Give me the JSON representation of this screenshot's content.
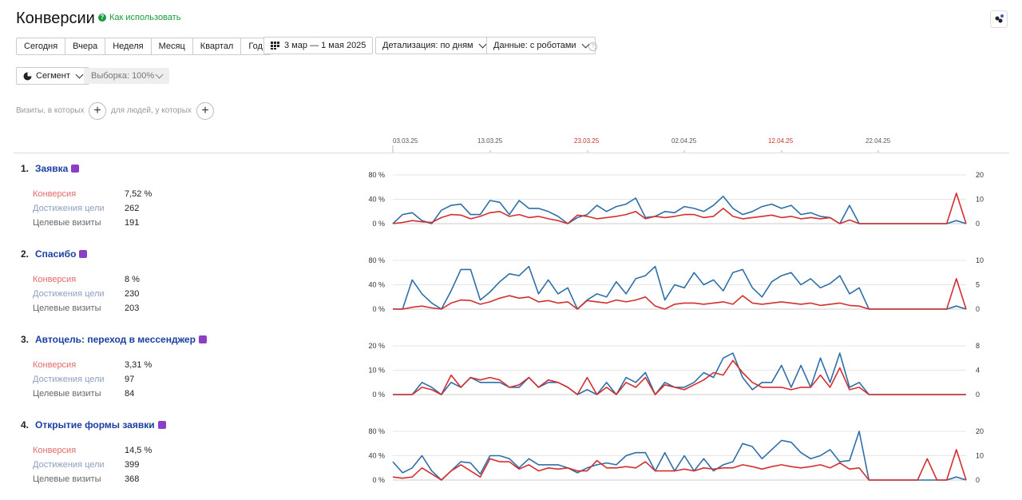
{
  "header": {
    "title": "Конверсии",
    "help_link": "Как использовать"
  },
  "toolbar": {
    "periods": [
      "Сегодня",
      "Вчера",
      "Неделя",
      "Месяц",
      "Квартал",
      "Год"
    ],
    "date_range": "3 мар — 1 мая 2025",
    "detail": "Детализация: по дням",
    "data_mode": "Данные: с роботами",
    "segment": "Сегмент",
    "sample": "Выборка: 100%"
  },
  "filters": {
    "visits_label": "Визиты, в которых",
    "people_label": "для людей, у которых"
  },
  "timeline": [
    "03.03.25",
    "13.03.25",
    "23.03.25",
    "02.04.25",
    "12.04.25",
    "22.04.25"
  ],
  "goals": [
    {
      "num": "1.",
      "name": "Заявка",
      "labels": [
        "Конверсия",
        "Достижения цели",
        "Целевые визиты"
      ],
      "values": [
        "7,52 %",
        "262",
        "191"
      ],
      "left_ticks": [
        "80 %",
        "40 %",
        "0 %"
      ],
      "right_ticks": [
        "20",
        "10",
        "0"
      ]
    },
    {
      "num": "2.",
      "name": "Спасибо",
      "labels": [
        "Конверсия",
        "Достижения цели",
        "Целевые визиты"
      ],
      "values": [
        "8 %",
        "230",
        "203"
      ],
      "left_ticks": [
        "80 %",
        "40 %",
        "0 %"
      ],
      "right_ticks": [
        "10",
        "5",
        "0"
      ]
    },
    {
      "num": "3.",
      "name": "Автоцель: переход в мессенджер",
      "labels": [
        "Конверсия",
        "Достижения цели",
        "Целевые визиты"
      ],
      "values": [
        "3,31 %",
        "97",
        "84"
      ],
      "left_ticks": [
        "20 %",
        "10 %",
        "0 %"
      ],
      "right_ticks": [
        "8",
        "4",
        "0"
      ]
    },
    {
      "num": "4.",
      "name": "Открытие формы заявки",
      "labels": [
        "Конверсия",
        "Достижения цели",
        "Целевые визиты"
      ],
      "values": [
        "14,5 %",
        "399",
        "368"
      ],
      "left_ticks": [
        "80 %",
        "40 %",
        "0 %"
      ],
      "right_ticks": [
        "20",
        "10",
        "0"
      ]
    }
  ],
  "chart_data": [
    {
      "type": "line",
      "title": "Заявка",
      "x_start": "03.03.25",
      "x_end": "01.05.25",
      "ylim_left": [
        0,
        80
      ],
      "ylim_right": [
        0,
        20
      ],
      "series": [
        {
          "color": "#2e6fa8",
          "values": [
            0,
            15,
            18,
            5,
            0,
            22,
            30,
            32,
            15,
            15,
            38,
            35,
            15,
            38,
            25,
            25,
            20,
            12,
            0,
            10,
            15,
            30,
            20,
            28,
            32,
            42,
            10,
            12,
            20,
            18,
            28,
            25,
            20,
            30,
            45,
            25,
            15,
            20,
            28,
            32,
            25,
            30,
            15,
            18,
            12,
            10,
            0,
            30,
            0,
            0,
            0,
            0,
            0,
            0,
            0,
            0,
            0,
            0,
            5,
            0
          ]
        },
        {
          "color": "#d32f2f",
          "values": [
            0,
            2,
            5,
            3,
            2,
            10,
            15,
            14,
            8,
            12,
            18,
            20,
            12,
            15,
            10,
            12,
            8,
            5,
            0,
            14,
            12,
            8,
            10,
            12,
            15,
            20,
            8,
            12,
            10,
            12,
            15,
            15,
            10,
            12,
            25,
            12,
            8,
            10,
            12,
            14,
            10,
            12,
            8,
            10,
            8,
            10,
            0,
            6,
            0,
            0,
            0,
            0,
            0,
            0,
            0,
            0,
            0,
            0,
            50,
            0
          ]
        }
      ]
    },
    {
      "type": "line",
      "title": "Спасибо",
      "x_start": "03.03.25",
      "x_end": "01.05.25",
      "ylim_left": [
        0,
        80
      ],
      "ylim_right": [
        0,
        10
      ],
      "series": [
        {
          "color": "#2e6fa8",
          "values": [
            0,
            0,
            48,
            25,
            10,
            0,
            30,
            65,
            65,
            15,
            28,
            45,
            58,
            55,
            70,
            25,
            48,
            25,
            35,
            0,
            15,
            25,
            20,
            45,
            25,
            50,
            55,
            70,
            15,
            40,
            35,
            60,
            40,
            48,
            30,
            60,
            65,
            35,
            20,
            45,
            55,
            60,
            40,
            50,
            35,
            42,
            55,
            25,
            35,
            0,
            0,
            0,
            0,
            0,
            0,
            0,
            0,
            0,
            5,
            0
          ]
        },
        {
          "color": "#d32f2f",
          "values": [
            0,
            0,
            3,
            5,
            2,
            0,
            10,
            15,
            14,
            8,
            12,
            18,
            22,
            18,
            20,
            12,
            14,
            10,
            12,
            0,
            14,
            12,
            10,
            15,
            12,
            15,
            20,
            5,
            0,
            8,
            10,
            10,
            8,
            10,
            12,
            8,
            22,
            10,
            8,
            10,
            12,
            10,
            8,
            10,
            6,
            8,
            10,
            6,
            5,
            0,
            0,
            0,
            0,
            0,
            0,
            0,
            0,
            0,
            50,
            0
          ]
        }
      ]
    },
    {
      "type": "line",
      "title": "Автоцель: переход в мессенджер",
      "x_start": "03.03.25",
      "x_end": "01.05.25",
      "ylim_left": [
        0,
        20
      ],
      "ylim_right": [
        0,
        8
      ],
      "series": [
        {
          "color": "#2e6fa8",
          "values": [
            0,
            0,
            0,
            5,
            3,
            0,
            5,
            3,
            7,
            5,
            5,
            5,
            3,
            3,
            7,
            3,
            5,
            5,
            3,
            0,
            2,
            0,
            5,
            0,
            7,
            5,
            9,
            0,
            5,
            3,
            3,
            5,
            9,
            7,
            15,
            17,
            7,
            2,
            5,
            5,
            12,
            3,
            12,
            3,
            15,
            5,
            17,
            3,
            5,
            0,
            0,
            0,
            0,
            0,
            0,
            0,
            0,
            0,
            0,
            0
          ]
        },
        {
          "color": "#d32f2f",
          "values": [
            0,
            0,
            0,
            3,
            2,
            0,
            8,
            3,
            7,
            6,
            7,
            6,
            3,
            4,
            7,
            3,
            6,
            5,
            3,
            0,
            7,
            0,
            3,
            0,
            5,
            3,
            7,
            0,
            4,
            3,
            2,
            4,
            6,
            9,
            8,
            14,
            9,
            5,
            3,
            3,
            3,
            2,
            3,
            3,
            8,
            3,
            11,
            2,
            3,
            0,
            0,
            0,
            0,
            0,
            0,
            0,
            0,
            0,
            0,
            0
          ]
        }
      ]
    },
    {
      "type": "line",
      "title": "Открытие формы заявки",
      "x_start": "03.03.25",
      "x_end": "01.05.25",
      "ylim_left": [
        0,
        80
      ],
      "ylim_right": [
        0,
        20
      ],
      "series": [
        {
          "color": "#2e6fa8",
          "values": [
            30,
            12,
            20,
            40,
            15,
            0,
            15,
            30,
            28,
            10,
            40,
            40,
            35,
            20,
            35,
            25,
            25,
            25,
            20,
            12,
            20,
            25,
            28,
            25,
            40,
            45,
            45,
            15,
            45,
            15,
            40,
            15,
            35,
            15,
            25,
            30,
            60,
            55,
            35,
            50,
            65,
            62,
            45,
            35,
            40,
            50,
            30,
            32,
            80,
            0,
            0,
            0,
            0,
            0,
            0,
            0,
            0,
            0,
            5,
            0
          ]
        },
        {
          "color": "#d32f2f",
          "values": [
            5,
            3,
            5,
            20,
            10,
            0,
            15,
            25,
            15,
            5,
            35,
            30,
            30,
            18,
            25,
            15,
            20,
            18,
            20,
            15,
            15,
            32,
            20,
            20,
            22,
            20,
            30,
            15,
            15,
            15,
            18,
            15,
            20,
            18,
            20,
            20,
            25,
            22,
            18,
            22,
            25,
            22,
            20,
            22,
            25,
            20,
            28,
            18,
            20,
            0,
            0,
            0,
            0,
            0,
            0,
            35,
            0,
            0,
            50,
            0
          ]
        }
      ]
    }
  ]
}
